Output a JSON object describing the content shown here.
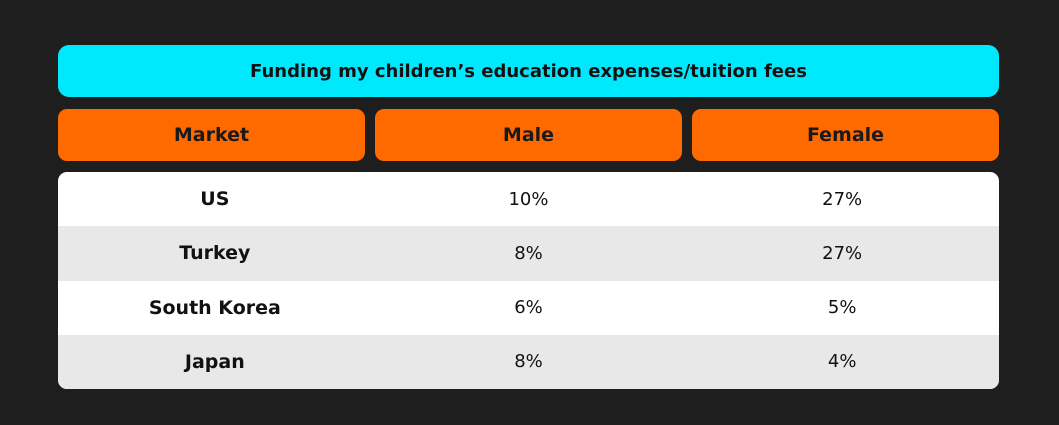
{
  "title": "Funding my children’s education expenses/tuition fees",
  "table": {
    "header": [
      "Market",
      "Male",
      "Female"
    ],
    "rows": [
      [
        "US",
        "10%",
        "27%"
      ],
      [
        "Turkey",
        "8%",
        "27%"
      ],
      [
        "South Korea",
        "6%",
        "5%"
      ],
      [
        "Japan",
        "8%",
        "4%"
      ]
    ]
  }
}
